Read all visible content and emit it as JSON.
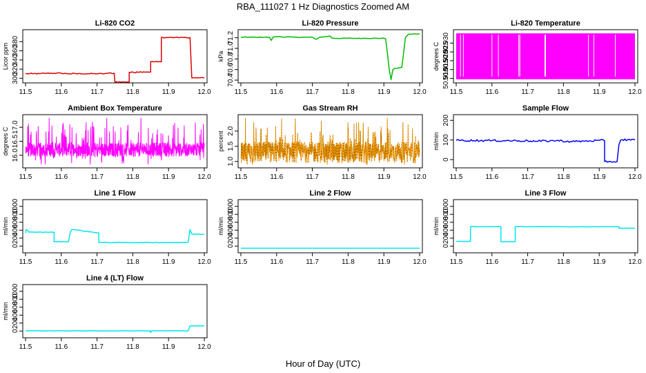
{
  "main_title": "RBA_111027  1 Hz Diagnostics Zoomed AM",
  "x_label": "Hour of Day (UTC)",
  "chart_data": [
    {
      "type": "line",
      "title": "Li-820 CO2",
      "xlabel": "",
      "ylabel": "Licor ppm",
      "xlim": [
        11.5,
        12.0
      ],
      "ylim": [
        296,
        400
      ],
      "x_ticks": [
        "11.5",
        "11.6",
        "11.7",
        "11.8",
        "11.9",
        "12.0"
      ],
      "y_ticks": [
        {
          "v": 300,
          "label": "300"
        },
        {
          "v": 320,
          "label": "320"
        },
        {
          "v": 340,
          "label": "340"
        },
        {
          "v": 360,
          "label": "360"
        },
        {
          "v": 380,
          "label": "380"
        }
      ],
      "color": "#dd0000",
      "noise": 1.2,
      "series": [
        {
          "x": [
            11.5,
            11.52,
            11.54,
            11.56,
            11.58,
            11.6,
            11.62,
            11.64,
            11.66,
            11.68,
            11.7,
            11.72,
            11.73,
            11.748,
            11.75,
            11.77,
            11.79,
            11.79,
            11.81,
            11.81,
            11.83,
            11.85,
            11.85,
            11.87,
            11.88,
            11.88,
            11.9,
            11.92,
            11.94,
            11.95,
            11.96,
            11.965,
            11.97,
            11.98,
            12.0
          ],
          "y": [
            310,
            310,
            310,
            311,
            311,
            311,
            310,
            310,
            310,
            310,
            310,
            310,
            311,
            311,
            292,
            292,
            292,
            313,
            313,
            314,
            314,
            314,
            336,
            336,
            336,
            389,
            389,
            389,
            389,
            389,
            389,
            301,
            301,
            301,
            301
          ]
        }
      ]
    },
    {
      "type": "line",
      "title": "Li-820 Pressure",
      "xlabel": "",
      "ylabel": "kPa",
      "xlim": [
        11.5,
        12.0
      ],
      "ylim": [
        70.4,
        71.3
      ],
      "x_ticks": [
        "11.5",
        "11.6",
        "11.7",
        "11.8",
        "11.9",
        "12.0"
      ],
      "y_ticks": [
        {
          "v": 70.4,
          "label": "70.4"
        },
        {
          "v": 70.6,
          "label": "70.6"
        },
        {
          "v": 70.8,
          "label": "70.8"
        },
        {
          "v": 71.0,
          "label": "71.0"
        },
        {
          "v": 71.2,
          "label": "71.2"
        }
      ],
      "color": "#00bb00",
      "noise": 0.006,
      "series": [
        {
          "x": [
            11.5,
            11.55,
            11.58,
            11.585,
            11.59,
            11.6,
            11.65,
            11.7,
            11.71,
            11.72,
            11.75,
            11.755,
            11.76,
            11.8,
            11.85,
            11.9,
            11.905,
            11.91,
            11.915,
            11.92,
            11.925,
            11.93,
            11.95,
            11.955,
            11.96,
            11.97,
            12.0
          ],
          "y": [
            71.21,
            71.21,
            71.21,
            71.15,
            71.21,
            71.22,
            71.21,
            71.21,
            71.17,
            71.21,
            71.23,
            71.19,
            71.19,
            71.19,
            71.19,
            71.19,
            71.18,
            70.9,
            70.6,
            70.41,
            70.6,
            70.62,
            70.64,
            70.9,
            71.2,
            71.27,
            71.27
          ]
        }
      ]
    },
    {
      "type": "line",
      "title": "Li-820 Temperature",
      "xlabel": "",
      "ylabel": "degrees C",
      "xlim": [
        11.5,
        12.0
      ],
      "ylim": [
        50.909,
        50.936
      ],
      "x_ticks": [
        "11.5",
        "11.6",
        "11.7",
        "11.8",
        "11.9",
        "12.0"
      ],
      "y_ticks": [
        {
          "v": 50.91,
          "label": "50.910"
        },
        {
          "v": 50.915,
          "label": "50.915"
        },
        {
          "v": 50.92,
          "label": "50.920"
        },
        {
          "v": 50.925,
          "label": "50.925"
        },
        {
          "v": 50.93,
          "label": "50.930"
        }
      ],
      "color": "#ff00ff",
      "fill": [
        50.9095,
        50.9355
      ],
      "gaps": [
        11.512,
        11.52,
        11.6,
        11.618,
        11.675,
        11.678,
        11.748,
        11.75,
        11.87,
        11.885,
        11.945
      ]
    },
    {
      "type": "line",
      "title": "Ambient Box Temperature",
      "xlabel": "",
      "ylabel": "degrees C",
      "xlim": [
        11.5,
        12.0
      ],
      "ylim": [
        15.65,
        17.35
      ],
      "x_ticks": [
        "11.5",
        "11.6",
        "11.7",
        "11.8",
        "11.9",
        "12.0"
      ],
      "y_ticks": [
        {
          "v": 16.0,
          "label": "16.0"
        },
        {
          "v": 16.5,
          "label": "16.5"
        },
        {
          "v": 17.0,
          "label": "17.0"
        }
      ],
      "color": "#ff00ff",
      "band": {
        "base": 16.2,
        "spread": 0.25,
        "spike": 1.0,
        "dips": 0.35
      }
    },
    {
      "type": "line",
      "title": "Gas Stream RH",
      "xlabel": "",
      "ylabel": "percent",
      "xlim": [
        11.5,
        12.0
      ],
      "ylim": [
        0.88,
        2.45
      ],
      "x_ticks": [
        "11.5",
        "11.6",
        "11.7",
        "11.8",
        "11.9",
        "12.0"
      ],
      "y_ticks": [
        {
          "v": 1.0,
          "label": "1.0"
        },
        {
          "v": 1.5,
          "label": "1.5"
        },
        {
          "v": 2.0,
          "label": "2.0"
        }
      ],
      "color": "#ff9900",
      "marker": "#444400",
      "band": {
        "base": 1.3,
        "spread": 0.35,
        "spike": 1.0,
        "dips": 0.3
      }
    },
    {
      "type": "line",
      "title": "Sample Flow",
      "xlabel": "",
      "ylabel": "ml/min",
      "xlim": [
        11.5,
        12.0
      ],
      "ylim": [
        -28,
        215
      ],
      "x_ticks": [
        "11.5",
        "11.6",
        "11.7",
        "11.8",
        "11.9",
        "12.0"
      ],
      "y_ticks": [
        {
          "v": 0,
          "label": "0"
        },
        {
          "v": 100,
          "label": "100"
        },
        {
          "v": 200,
          "label": "200"
        }
      ],
      "color": "#0000ff",
      "noise": 5,
      "series": [
        {
          "x": [
            11.5,
            11.6,
            11.7,
            11.72,
            11.78,
            11.82,
            11.86,
            11.9,
            11.915,
            11.915,
            11.95,
            11.955,
            11.96,
            11.98,
            12.0
          ],
          "y": [
            98,
            97,
            96,
            93,
            97,
            92,
            94,
            98,
            96,
            -10,
            -10,
            75,
            100,
            102,
            100
          ]
        }
      ]
    },
    {
      "type": "line",
      "title": "Line 1 Flow",
      "xlabel": "",
      "ylabel": "ml/min",
      "xlim": [
        11.5,
        12.0
      ],
      "ylim": [
        -100,
        1100
      ],
      "x_ticks": [
        "11.5",
        "11.6",
        "11.7",
        "11.8",
        "11.9",
        "12.0"
      ],
      "y_ticks": [
        {
          "v": 0,
          "label": "0"
        },
        {
          "v": 200,
          "label": "200"
        },
        {
          "v": 400,
          "label": "400"
        },
        {
          "v": 600,
          "label": "600"
        },
        {
          "v": 800,
          "label": "800"
        },
        {
          "v": 1000,
          "label": "1000"
        }
      ],
      "color": "#00e5ee",
      "noise": 8,
      "series": [
        {
          "x": [
            11.5,
            11.502,
            11.51,
            11.58,
            11.58,
            11.62,
            11.625,
            11.63,
            11.705,
            11.705,
            11.95,
            11.955,
            11.96,
            11.965,
            12.0
          ],
          "y": [
            330,
            420,
            350,
            350,
            110,
            110,
            350,
            420,
            330,
            90,
            90,
            100,
            420,
            300,
            300
          ]
        }
      ]
    },
    {
      "type": "line",
      "title": "Line 2 Flow",
      "xlabel": "",
      "ylabel": "ml/min",
      "xlim": [
        11.5,
        12.0
      ],
      "ylim": [
        -100,
        1100
      ],
      "x_ticks": [
        "11.5",
        "11.6",
        "11.7",
        "11.8",
        "11.9",
        "12.0"
      ],
      "y_ticks": [
        {
          "v": 0,
          "label": "0"
        },
        {
          "v": 200,
          "label": "200"
        },
        {
          "v": 400,
          "label": "400"
        },
        {
          "v": 600,
          "label": "600"
        },
        {
          "v": 800,
          "label": "800"
        },
        {
          "v": 1000,
          "label": "1000"
        }
      ],
      "color": "#00e5ee",
      "noise": 0,
      "series": [
        {
          "x": [
            11.5,
            12.0
          ],
          "y": [
            -55,
            -55
          ]
        }
      ]
    },
    {
      "type": "line",
      "title": "Line 3 Flow",
      "xlabel": "",
      "ylabel": "ml/min",
      "xlim": [
        11.5,
        12.0
      ],
      "ylim": [
        -100,
        1100
      ],
      "x_ticks": [
        "11.5",
        "11.6",
        "11.7",
        "11.8",
        "11.9",
        "12.0"
      ],
      "y_ticks": [
        {
          "v": 0,
          "label": "0"
        },
        {
          "v": 200,
          "label": "200"
        },
        {
          "v": 400,
          "label": "400"
        },
        {
          "v": 600,
          "label": "600"
        },
        {
          "v": 800,
          "label": "800"
        },
        {
          "v": 1000,
          "label": "1000"
        }
      ],
      "color": "#00e5ee",
      "noise": 5,
      "series": [
        {
          "x": [
            11.5,
            11.54,
            11.54,
            11.625,
            11.625,
            11.665,
            11.665,
            11.75,
            11.85,
            11.955,
            11.955,
            12.0
          ],
          "y": [
            120,
            120,
            490,
            490,
            110,
            110,
            490,
            490,
            485,
            490,
            450,
            450
          ]
        }
      ]
    },
    {
      "type": "line",
      "title": "Line 4 (LT) Flow",
      "xlabel": "",
      "ylabel": "ml/min",
      "xlim": [
        11.5,
        12.0
      ],
      "ylim": [
        -100,
        1100
      ],
      "x_ticks": [
        "11.5",
        "11.6",
        "11.7",
        "11.8",
        "11.9",
        "12.0"
      ],
      "y_ticks": [
        {
          "v": 0,
          "label": "0"
        },
        {
          "v": 200,
          "label": "200"
        },
        {
          "v": 400,
          "label": "400"
        },
        {
          "v": 600,
          "label": "600"
        },
        {
          "v": 800,
          "label": "800"
        },
        {
          "v": 1000,
          "label": "1000"
        }
      ],
      "color": "#00e5ee",
      "noise": 3,
      "series": [
        {
          "x": [
            11.5,
            11.7,
            11.848,
            11.85,
            11.852,
            11.955,
            11.96,
            12.0
          ],
          "y": [
            5,
            5,
            5,
            -40,
            5,
            5,
            130,
            130
          ]
        }
      ]
    }
  ]
}
